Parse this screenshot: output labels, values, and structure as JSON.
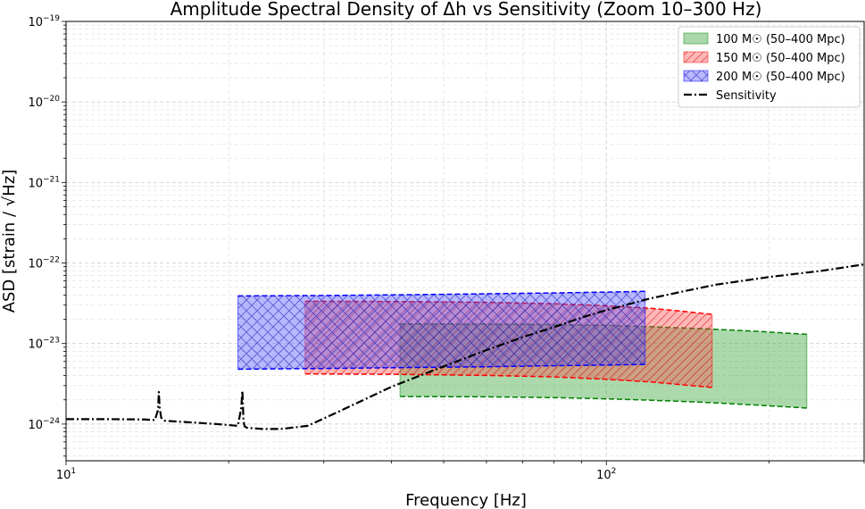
{
  "chart_data": {
    "type": "area",
    "title": "Amplitude Spectral Density of Δh vs Sensitivity (Zoom 10–300 Hz)",
    "xlabel": "Frequency [Hz]",
    "ylabel": "ASD [strain / √Hz]",
    "xscale": "log",
    "yscale": "log",
    "xlim": [
      10,
      300
    ],
    "ylim": [
      3.5e-25,
      1e-19
    ],
    "x_tick_labels": [
      {
        "value": 10,
        "base": "10",
        "exp": "1"
      },
      {
        "value": 100,
        "base": "10",
        "exp": "2"
      }
    ],
    "y_tick_labels": [
      {
        "value": 1e-24,
        "base": "10",
        "exp": "−24"
      },
      {
        "value": 1e-23,
        "base": "10",
        "exp": "−23"
      },
      {
        "value": 1e-22,
        "base": "10",
        "exp": "−22"
      },
      {
        "value": 1e-21,
        "base": "10",
        "exp": "−21"
      },
      {
        "value": 1e-20,
        "base": "10",
        "exp": "−20"
      },
      {
        "value": 1e-19,
        "base": "10",
        "exp": "−19"
      }
    ],
    "grid": true,
    "legend_position": "top-right",
    "bands": [
      {
        "name": "100 M☉ (50–400 Mpc)",
        "color": "#2ca02c",
        "edge_color": "#008000",
        "hatch": "none",
        "x": [
          41.5,
          60,
          80,
          100,
          120,
          150,
          190,
          235
        ],
        "upper": [
          1.75e-23,
          1.74e-23,
          1.72e-23,
          1.68e-23,
          1.62e-23,
          1.53e-23,
          1.42e-23,
          1.3e-23
        ],
        "lower": [
          2.2e-24,
          2.18e-24,
          2.13e-24,
          2.06e-24,
          1.98e-24,
          1.87e-24,
          1.72e-24,
          1.58e-24
        ]
      },
      {
        "name": "150 M☉ (50–400 Mpc)",
        "color": "#ff4d4d",
        "edge_color": "#ff0000",
        "hatch": "diagonal",
        "x": [
          27.7,
          40,
          60,
          80,
          100,
          120,
          140,
          157
        ],
        "upper": [
          3.35e-23,
          3.33e-23,
          3.25e-23,
          3.12e-23,
          2.95e-23,
          2.75e-23,
          2.5e-23,
          2.3e-23
        ],
        "lower": [
          4.2e-24,
          4.15e-24,
          4.02e-24,
          3.85e-24,
          3.6e-24,
          3.35e-24,
          3.05e-24,
          2.85e-24
        ]
      },
      {
        "name": "200 M☉ (50–400 Mpc)",
        "color": "#4d4dff",
        "edge_color": "#0000ff",
        "hatch": "cross",
        "x": [
          20.8,
          30,
          45,
          60,
          80,
          100,
          118
        ],
        "upper": [
          3.9e-23,
          3.95e-23,
          4.05e-23,
          4.15e-23,
          4.25e-23,
          4.35e-23,
          4.45e-23
        ],
        "lower": [
          4.8e-24,
          4.9e-24,
          5.05e-24,
          5.15e-24,
          5.3e-24,
          5.4e-24,
          5.5e-24
        ]
      }
    ],
    "sensitivity": {
      "name": "Sensitivity",
      "color": "#000000",
      "style": "dash-dot",
      "x": [
        10,
        12,
        14,
        14.6,
        14.8,
        14.85,
        14.9,
        15.0,
        15.2,
        17,
        19,
        20.8,
        21.1,
        21.2,
        21.25,
        21.3,
        21.4,
        21.6,
        23,
        25,
        28,
        31,
        35,
        40,
        50,
        60,
        70,
        80,
        90,
        100,
        120,
        140,
        160,
        200,
        250,
        300
      ],
      "y": [
        1.15e-24,
        1.15e-24,
        1.14e-24,
        1.12e-24,
        1.5e-24,
        2.5e-24,
        1.6e-24,
        1.2e-24,
        1.1e-24,
        1.05e-24,
        1e-24,
        9.5e-25,
        1.6e-24,
        2.6e-24,
        1.7e-24,
        1.1e-24,
        9.4e-25,
        9e-25,
        8.7e-25,
        8.7e-25,
        9.5e-25,
        1.3e-24,
        1.9e-24,
        2.9e-24,
        5.2e-24,
        8.3e-24,
        1.2e-23,
        1.6e-23,
        2.1e-23,
        2.6e-23,
        3.6e-23,
        4.5e-23,
        5.4e-23,
        6.7e-23,
        8e-23,
        9.6e-23
      ]
    }
  }
}
